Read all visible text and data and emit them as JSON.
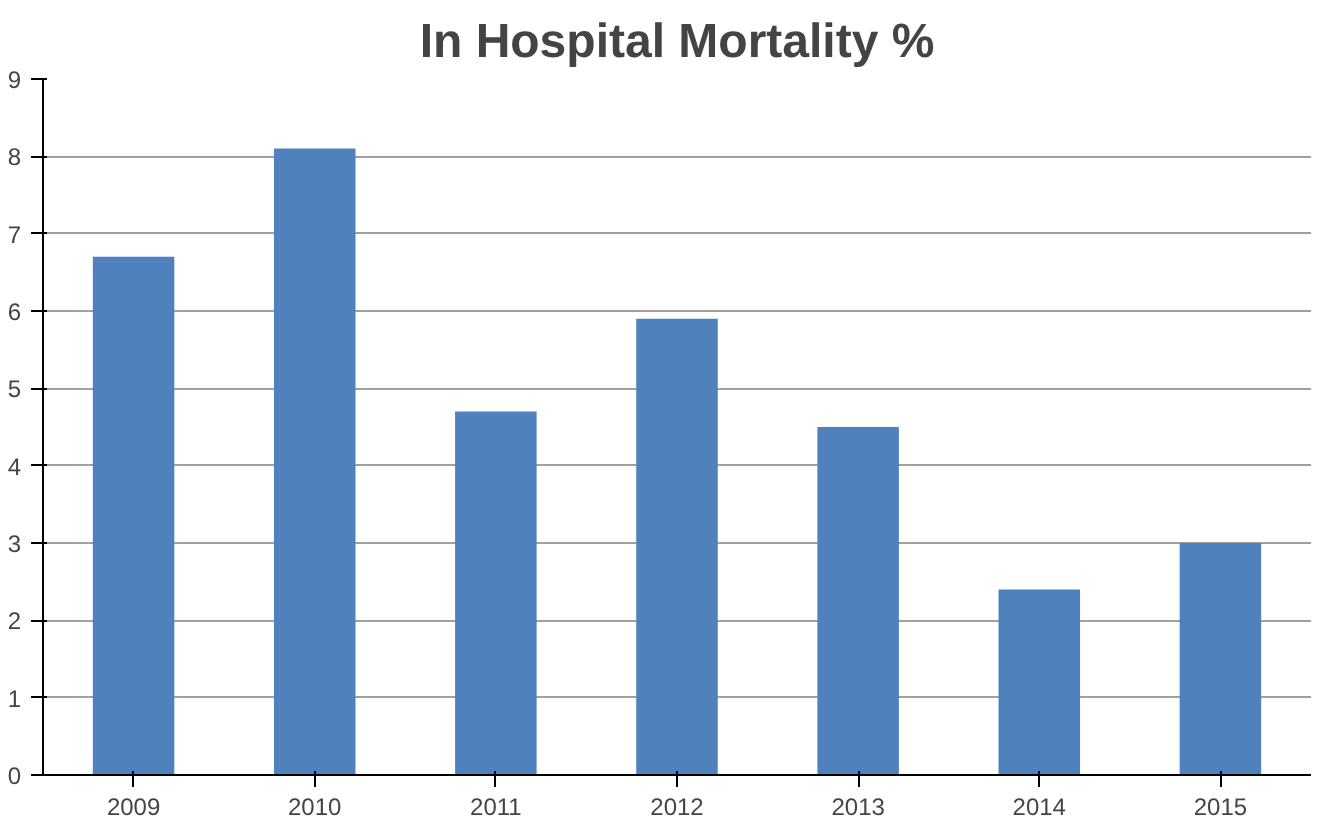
{
  "chart_data": {
    "type": "bar",
    "title": "In Hospital Mortality %",
    "categories": [
      "2009",
      "2010",
      "2011",
      "2012",
      "2013",
      "2014",
      "2015"
    ],
    "values": [
      6.7,
      8.1,
      4.7,
      5.9,
      4.5,
      2.4,
      3.0
    ],
    "color": "#4f81bd",
    "ylim": [
      0,
      9
    ],
    "yticks": [
      0,
      1,
      2,
      3,
      4,
      5,
      6,
      7,
      8,
      9
    ],
    "grid": "y"
  }
}
